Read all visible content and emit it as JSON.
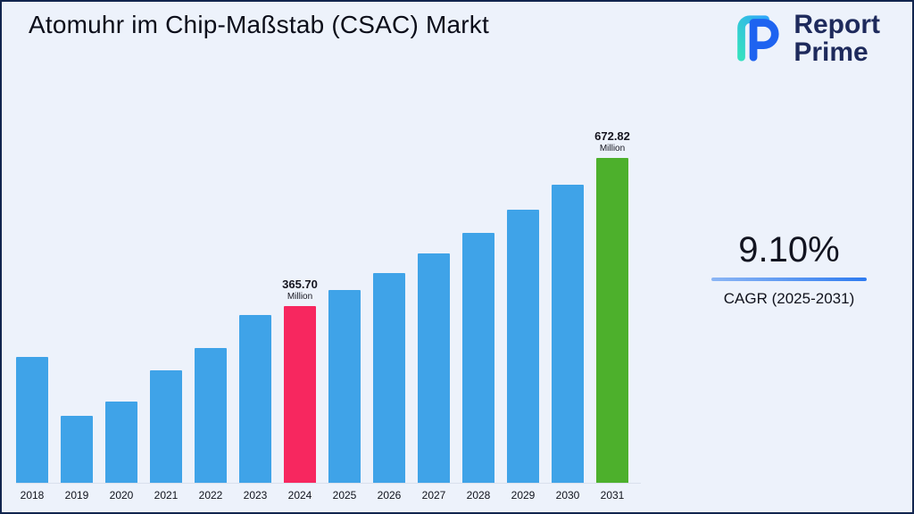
{
  "page": {
    "title": "Atomuhr im Chip-Maßstab (CSAC) Markt",
    "background_color": "#edf2fb",
    "border_color": "#12254e"
  },
  "logo": {
    "name": "Report Prime",
    "line1": "Report",
    "line2": "Prime",
    "text_color": "#1e2a5c"
  },
  "cagr": {
    "value": "9.10%",
    "label": "CAGR (2025-2031)",
    "divider_colors": [
      "#8cb6f5",
      "#2e7bf0"
    ]
  },
  "chart_data": {
    "type": "bar",
    "title": "Atomuhr im Chip-Maßstab (CSAC) Markt",
    "unit": "Million",
    "categories": [
      "2018",
      "2019",
      "2020",
      "2021",
      "2022",
      "2023",
      "2024",
      "2025",
      "2026",
      "2027",
      "2028",
      "2029",
      "2030",
      "2031"
    ],
    "values": [
      260,
      138,
      168,
      232,
      280,
      348,
      365.7,
      398.98,
      435.29,
      474.9,
      518.12,
      565.27,
      616.71,
      672.82
    ],
    "ylim": [
      0,
      700
    ],
    "grid": false,
    "legend": false,
    "bar_colors": {
      "default": "#3fa3e8",
      "2024": "#f7275f",
      "2031": "#4db02c"
    },
    "annotations": [
      {
        "category": "2024",
        "value_label": "365.70",
        "unit_label": "Million"
      },
      {
        "category": "2031",
        "value_label": "672.82",
        "unit_label": "Million"
      }
    ]
  }
}
